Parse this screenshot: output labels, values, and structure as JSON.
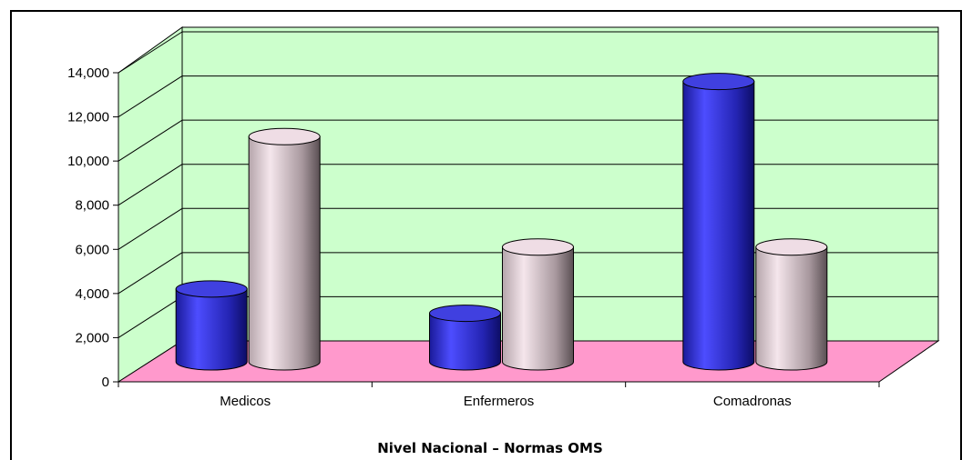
{
  "chart_data": {
    "type": "bar",
    "style": "3d-cylinder",
    "title": "",
    "caption": "Nivel Nacional  –  Normas  OMS",
    "xlabel": "",
    "ylabel": "",
    "categories": [
      "Medicos",
      "Enfermeros",
      "Comadronas"
    ],
    "y_ticks": [
      "0",
      "2,000",
      "4,000",
      "6,000",
      "8,000",
      "10,000",
      "12,000",
      "14,000"
    ],
    "ylim": [
      0,
      14000
    ],
    "grid": true,
    "legend": "none",
    "series": [
      {
        "values": [
          3300,
          2200,
          12700
        ],
        "color": "#3333cc"
      },
      {
        "values": [
          10200,
          5200,
          5200
        ],
        "color": "#e8d4dc"
      }
    ],
    "colors": {
      "wall": "#ccffcc",
      "floor": "#ff99cc"
    }
  }
}
